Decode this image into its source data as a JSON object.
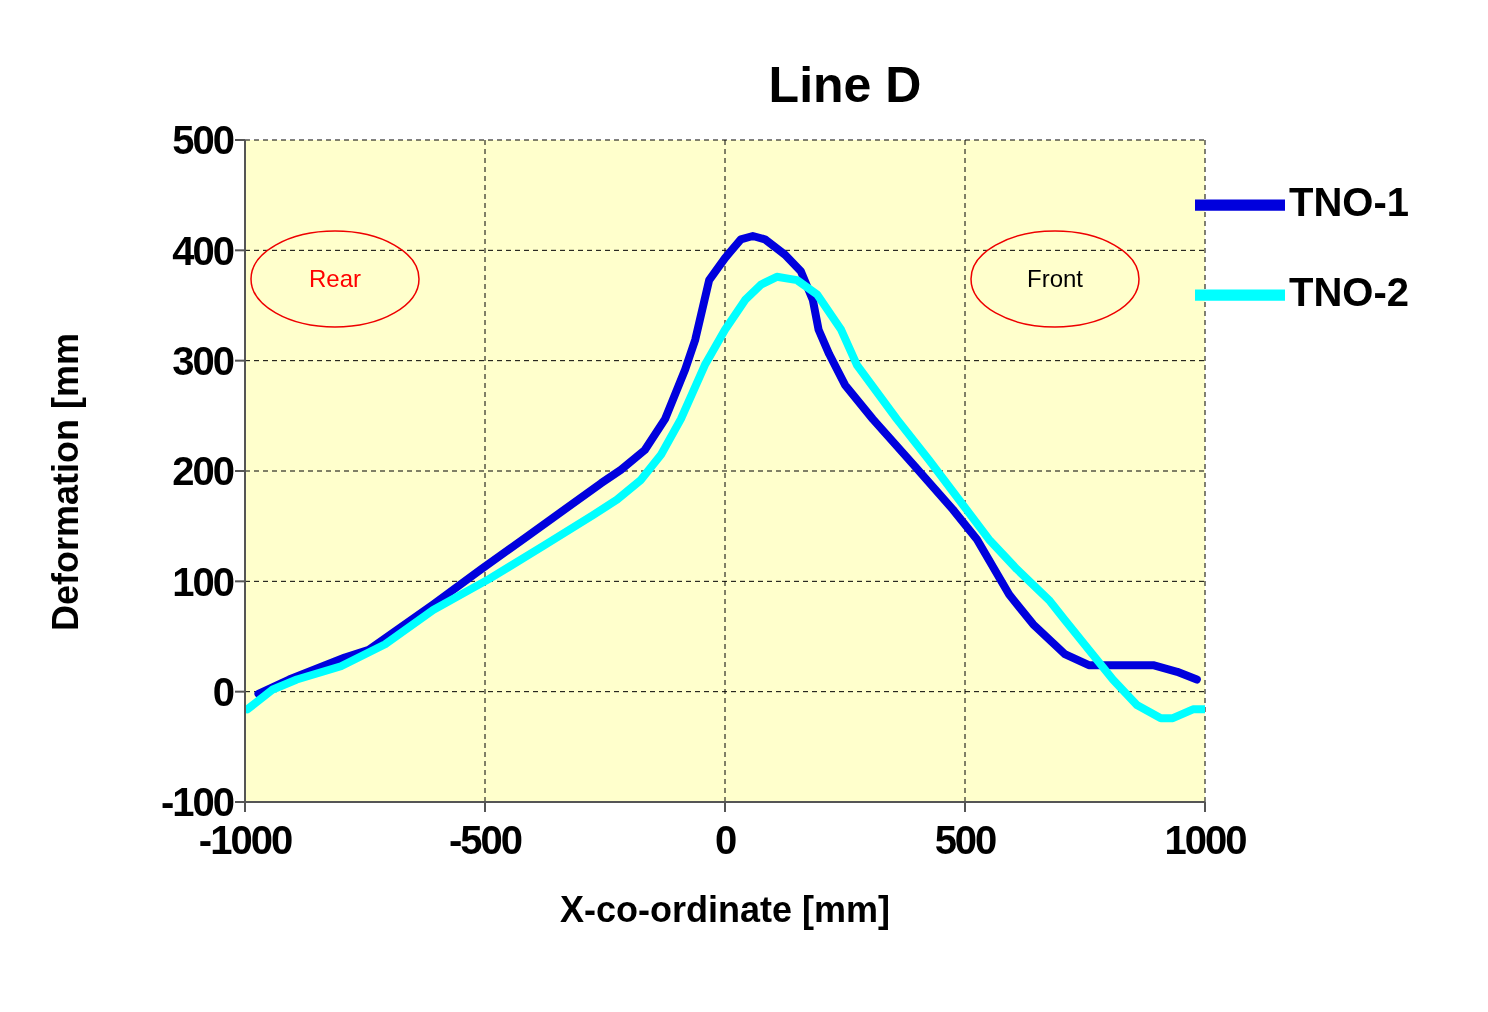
{
  "chart_data": {
    "type": "line",
    "title": "Line D",
    "xlabel": "X-co-ordinate [mm]",
    "ylabel": "Deformation [mm",
    "xlim": [
      -1000,
      1000
    ],
    "xticks": [
      -1000,
      -500,
      0,
      500,
      1000
    ],
    "ylim": [
      -100,
      500
    ],
    "yticks": [
      -100,
      0,
      100,
      200,
      300,
      400,
      500
    ],
    "grid": true,
    "legend": "top right",
    "marker": "none",
    "line_style": "solid",
    "annotations": [
      "Rear",
      "Front"
    ],
    "series": [
      {
        "name": "TNO-1",
        "color": "#0000dd",
        "x": [
          -972,
          -908,
          -792,
          -742,
          -608,
          -508,
          -408,
          -258,
          -217,
          -167,
          -125,
          -83,
          -62,
          -33,
          0,
          33,
          58,
          83,
          125,
          158,
          183,
          195,
          217,
          250,
          308,
          392,
          475,
          525,
          592,
          642,
          708,
          758,
          892,
          942,
          983
        ],
        "values": [
          -2,
          11,
          31,
          38,
          79,
          111,
          142,
          189,
          201,
          219,
          247,
          292,
          319,
          373,
          393,
          410,
          413,
          410,
          396,
          381,
          355,
          328,
          306,
          278,
          247,
          206,
          165,
          138,
          88,
          61,
          34,
          24,
          24,
          18,
          11
        ]
      },
      {
        "name": "TNO-2",
        "color": "#00ffff",
        "x": [
          -995,
          -942,
          -892,
          -800,
          -708,
          -608,
          -492,
          -375,
          -275,
          -225,
          -175,
          -133,
          -92,
          -42,
          0,
          42,
          75,
          108,
          150,
          192,
          242,
          275,
          358,
          425,
          550,
          608,
          675,
          708,
          758,
          808,
          858,
          908,
          933,
          975,
          1000
        ],
        "values": [
          -16,
          2,
          11,
          23,
          43,
          74,
          102,
          133,
          160,
          174,
          192,
          215,
          247,
          296,
          328,
          355,
          369,
          376,
          373,
          360,
          328,
          296,
          247,
          210,
          138,
          111,
          83,
          65,
          38,
          11,
          -12,
          -24,
          -24,
          -16,
          -16
        ]
      }
    ]
  }
}
